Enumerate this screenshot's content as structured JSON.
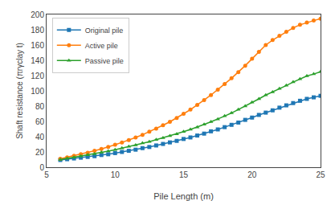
{
  "chart_data": {
    "type": "line",
    "x": [
      6,
      6.5,
      7,
      7.5,
      8,
      8.5,
      9,
      9.5,
      10,
      10.5,
      11,
      11.5,
      12,
      12.5,
      13,
      13.5,
      14,
      14.5,
      15,
      15.5,
      16,
      16.5,
      17,
      17.5,
      18,
      18.5,
      19,
      19.5,
      20,
      20.5,
      21,
      21.5,
      22,
      22.5,
      23,
      23.5,
      24,
      24.5,
      25
    ],
    "series": [
      {
        "name": "Original pile",
        "marker": "square",
        "values": [
          9.5,
          10.5,
          11.5,
          12.5,
          13.5,
          14.5,
          16.0,
          17.0,
          18.5,
          20.0,
          21.5,
          23.0,
          25.0,
          26.5,
          28.5,
          30.5,
          32.5,
          34.5,
          37.0,
          39.0,
          41.5,
          44.0,
          47.0,
          49.5,
          52.5,
          55.5,
          58.5,
          62.0,
          65.0,
          68.5,
          71.5,
          74.5,
          78.0,
          81.0,
          84.0,
          87.0,
          89.5,
          91.5,
          93.5
        ]
      },
      {
        "name": "Active pile",
        "marker": "circle",
        "values": [
          11.0,
          13.0,
          15.0,
          17.0,
          19.0,
          21.5,
          24.0,
          26.5,
          29.5,
          32.5,
          35.5,
          39.0,
          42.5,
          46.5,
          50.5,
          55.0,
          59.5,
          64.5,
          70.0,
          75.5,
          81.5,
          88.0,
          94.5,
          101.5,
          109.0,
          116.5,
          124.5,
          133.0,
          142.0,
          151.0,
          160.0,
          166.5,
          172.0,
          177.5,
          182.5,
          186.5,
          189.5,
          192.0,
          194.5
        ]
      },
      {
        "name": "Passive pile",
        "marker": "triangle-up",
        "values": [
          10.0,
          11.5,
          13.0,
          14.5,
          16.0,
          17.5,
          19.5,
          21.0,
          23.0,
          25.0,
          27.0,
          29.0,
          31.5,
          33.5,
          36.0,
          38.5,
          41.0,
          43.5,
          46.5,
          49.5,
          52.5,
          56.0,
          59.5,
          63.0,
          67.0,
          71.0,
          75.5,
          80.0,
          85.0,
          89.5,
          94.5,
          98.5,
          103.0,
          107.0,
          111.5,
          115.5,
          119.5,
          122.0,
          125.0
        ]
      }
    ],
    "x_label": "Pile Length (m)",
    "y_label": "Shaft resistance (πrγclay t)",
    "xlim": [
      5,
      25
    ],
    "ylim": [
      0,
      200
    ],
    "xticks": [
      5,
      10,
      15,
      20,
      25
    ],
    "yticks": [
      0,
      20,
      40,
      60,
      80,
      100,
      120,
      140,
      160,
      180,
      200
    ],
    "grid": false,
    "legend": "upper left"
  }
}
